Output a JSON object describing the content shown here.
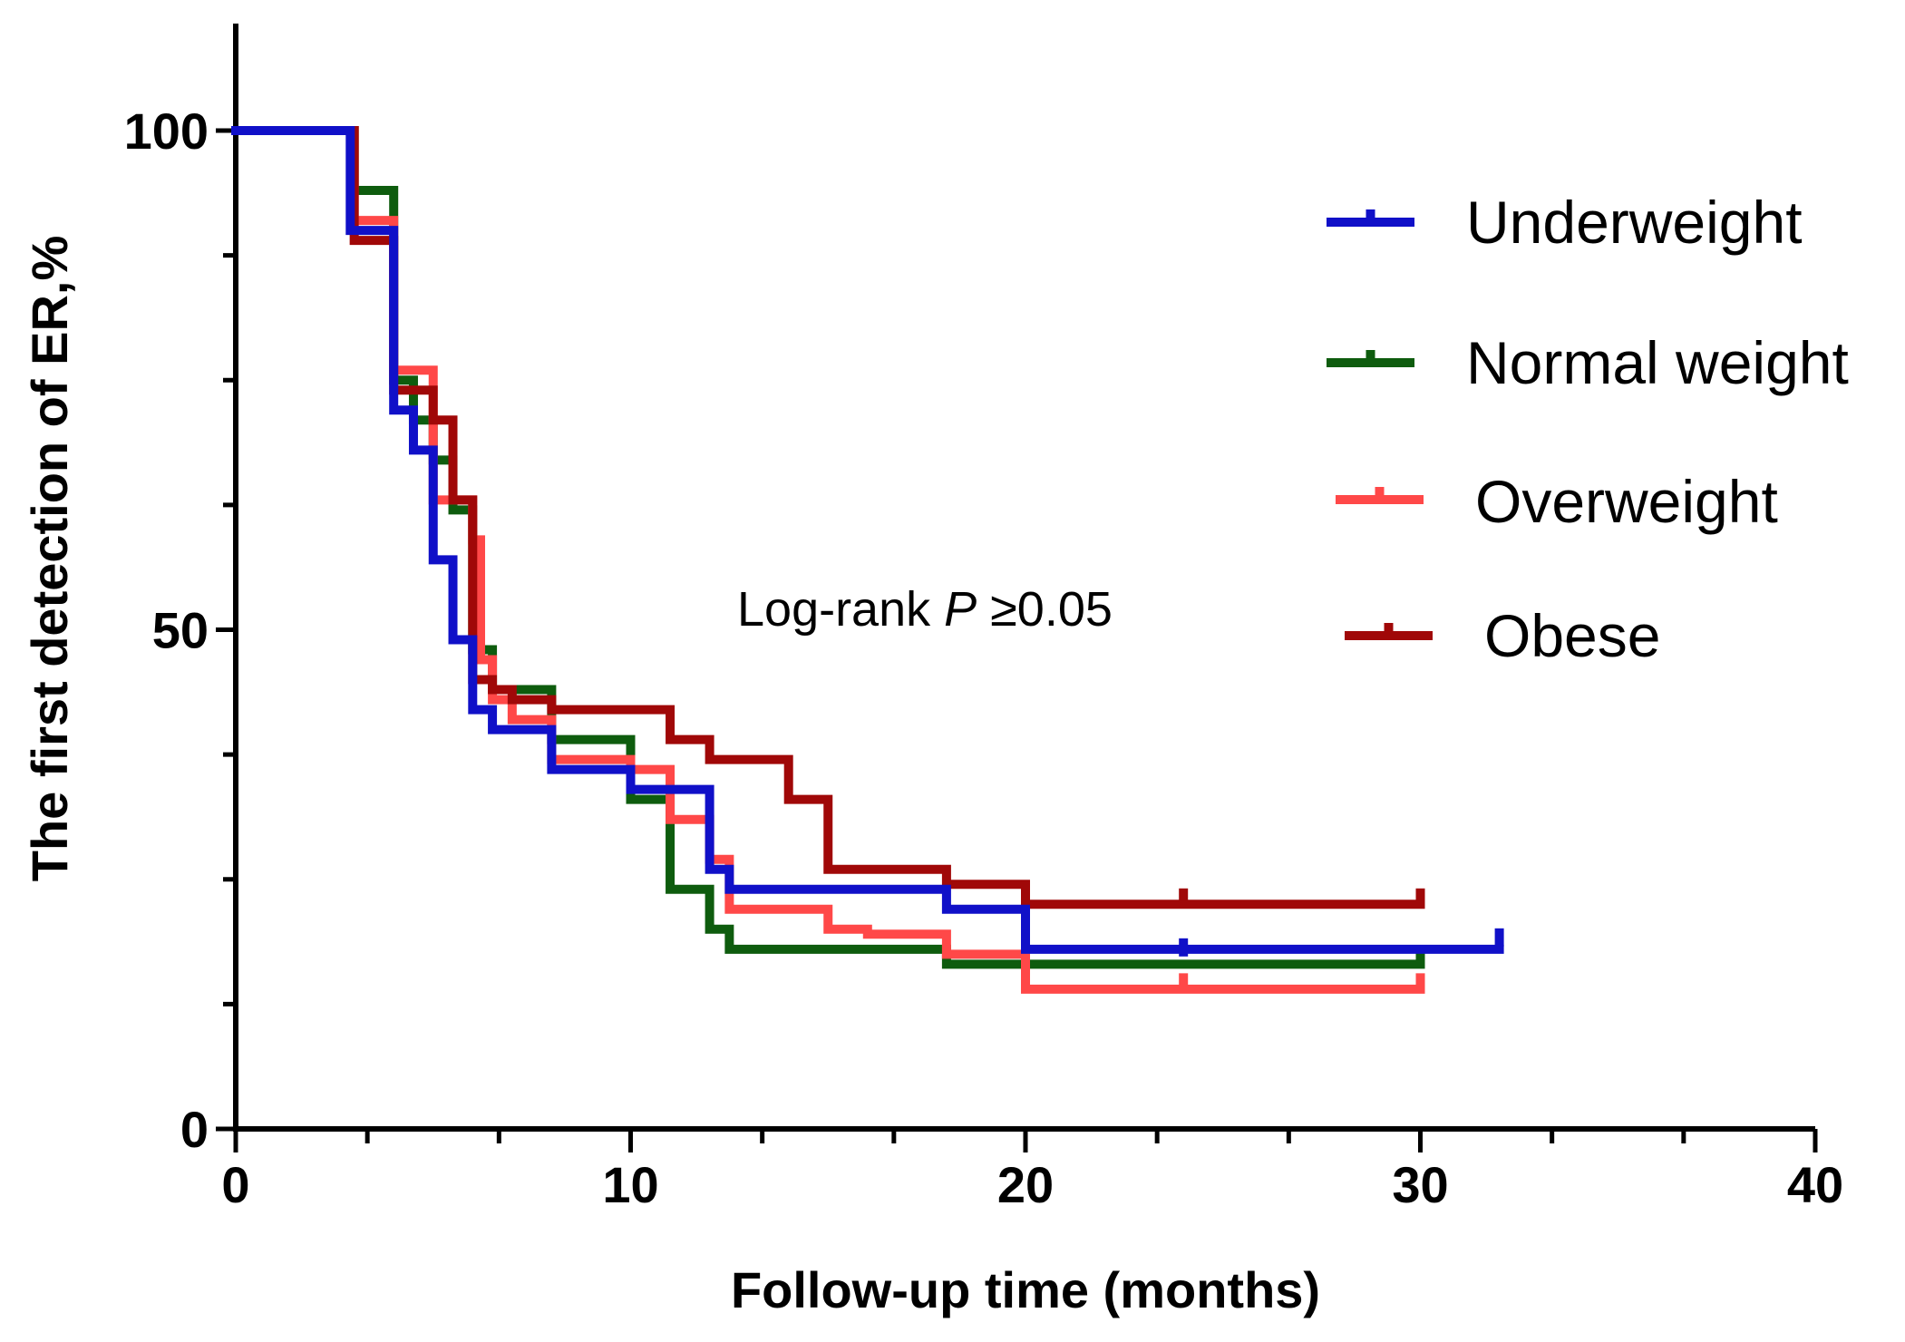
{
  "chart_data": {
    "type": "line",
    "subtype": "kaplan-meier step curve",
    "title": "",
    "xlabel": "Follow-up time (months)",
    "ylabel": "The first detection of ER,%",
    "xlim": [
      0,
      40
    ],
    "ylim": [
      0,
      110
    ],
    "x_ticks": [
      0,
      10,
      20,
      30,
      40
    ],
    "x_tick_labels": [
      "0",
      "10",
      "20",
      "30",
      "40"
    ],
    "y_ticks": [
      0,
      50,
      100
    ],
    "y_tick_labels": [
      "0",
      "50",
      "100"
    ],
    "annotation": {
      "prefix": "Log-rank ",
      "p": "P",
      "suffix": " ≥0.05"
    },
    "legend_position": "top-right",
    "series": [
      {
        "name": "Underweight",
        "color": "#1010c8",
        "steps": [
          [
            0,
            100
          ],
          [
            2.9,
            90
          ],
          [
            4,
            72
          ],
          [
            4.5,
            68
          ],
          [
            5,
            57
          ],
          [
            5.5,
            49
          ],
          [
            6,
            42
          ],
          [
            6.5,
            40
          ],
          [
            8,
            36
          ],
          [
            10,
            34
          ],
          [
            12,
            26
          ],
          [
            12.5,
            24
          ],
          [
            18,
            22
          ],
          [
            20,
            18
          ],
          [
            32,
            18
          ]
        ],
        "censor": [
          [
            24,
            18
          ],
          [
            32,
            19
          ]
        ]
      },
      {
        "name": "Normal weight",
        "color": "#0e5c0e",
        "steps": [
          [
            0,
            100
          ],
          [
            3,
            94
          ],
          [
            4,
            75
          ],
          [
            4.5,
            71
          ],
          [
            5,
            67
          ],
          [
            5.5,
            62
          ],
          [
            6,
            57
          ],
          [
            6,
            48
          ],
          [
            6.5,
            44
          ],
          [
            8,
            39
          ],
          [
            10,
            33
          ],
          [
            11,
            24
          ],
          [
            12,
            20
          ],
          [
            12.5,
            18
          ],
          [
            18,
            16.5
          ],
          [
            30,
            16.5
          ]
        ],
        "censor": [
          [
            30,
            17
          ]
        ]
      },
      {
        "name": "Overweight",
        "color": "#ff4848",
        "steps": [
          [
            0,
            100
          ],
          [
            3,
            91
          ],
          [
            4,
            76
          ],
          [
            5,
            63
          ],
          [
            6,
            59
          ],
          [
            6.2,
            47
          ],
          [
            6.5,
            43
          ],
          [
            7,
            41
          ],
          [
            8,
            37
          ],
          [
            10,
            36
          ],
          [
            11,
            31
          ],
          [
            12,
            27
          ],
          [
            12.5,
            22
          ],
          [
            15,
            20
          ],
          [
            16,
            19.5
          ],
          [
            18,
            17.5
          ],
          [
            20,
            14
          ],
          [
            30,
            14
          ]
        ],
        "censor": [
          [
            20,
            14.5
          ],
          [
            24,
            14.5
          ],
          [
            30,
            14.5
          ]
        ]
      },
      {
        "name": "Obese",
        "color": "#a00808",
        "steps": [
          [
            0,
            100
          ],
          [
            3,
            89
          ],
          [
            4,
            74
          ],
          [
            5,
            71
          ],
          [
            5.5,
            63
          ],
          [
            6,
            45
          ],
          [
            6.5,
            44
          ],
          [
            7,
            43
          ],
          [
            8,
            42
          ],
          [
            11,
            39
          ],
          [
            12,
            37
          ],
          [
            14,
            33
          ],
          [
            15,
            26
          ],
          [
            18,
            24.5
          ],
          [
            20,
            22.5
          ],
          [
            30,
            22.5
          ]
        ],
        "censor": [
          [
            24,
            23
          ],
          [
            30,
            23
          ]
        ]
      }
    ]
  }
}
